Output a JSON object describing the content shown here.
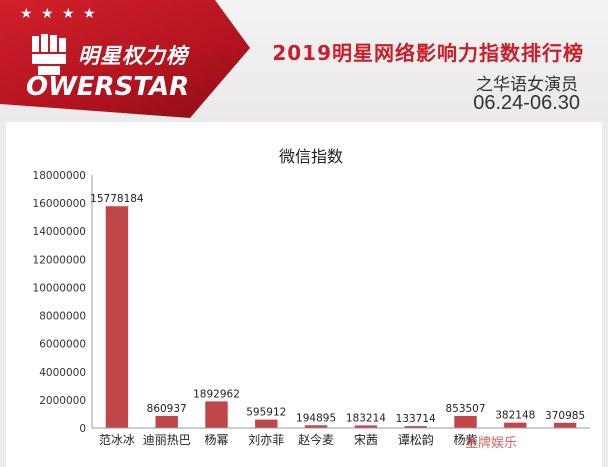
{
  "brand": {
    "name_cn": "明星权力榜",
    "name_en": "OWERSTAR"
  },
  "header": {
    "title": "2019明星网络影响力指数排行榜",
    "subtitle": "之华语女演员",
    "date_range": "06.24-06.30"
  },
  "colors": {
    "bar": "#c0464a",
    "brand_red": "#c81f2b"
  },
  "chart_data": {
    "type": "bar",
    "title": "微信指数",
    "categories": [
      "范冰冰",
      "迪丽热巴",
      "杨幂",
      "刘亦菲",
      "赵今麦",
      "宋茜",
      "谭松韵",
      "杨紫",
      "",
      ""
    ],
    "values": [
      15778184,
      860937,
      1892962,
      595912,
      194895,
      183214,
      133714,
      853507,
      382148,
      370985
    ],
    "data_labels": [
      "15778184",
      "860937",
      "1892962",
      "595912",
      "194895",
      "183214",
      "133714",
      "853507",
      "382148",
      "370985"
    ],
    "ylim": [
      0,
      18000000
    ],
    "yticks": [
      "0",
      "2000000",
      "4000000",
      "6000000",
      "8000000",
      "10000000",
      "12000000",
      "14000000",
      "16000000",
      "18000000"
    ],
    "grid": false
  },
  "watermark": "金牌娱乐"
}
